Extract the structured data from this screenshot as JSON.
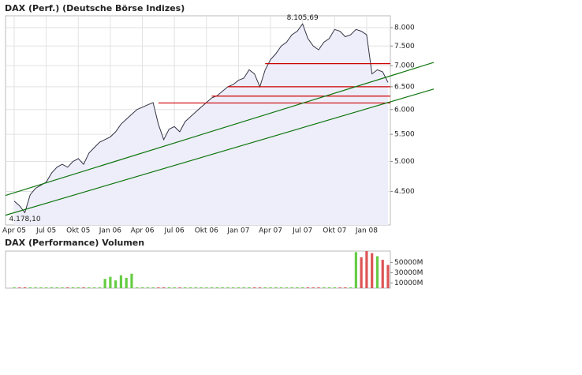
{
  "chart_data": [
    {
      "type": "line",
      "title": "DAX (Perf.) (Deutsche Börse Indizes)",
      "categories": [
        "Apr 05",
        null,
        null,
        null,
        null,
        null,
        "Jul 05",
        null,
        null,
        null,
        null,
        null,
        "Okt 05",
        null,
        null,
        null,
        null,
        null,
        "Jan 06",
        null,
        null,
        null,
        null,
        null,
        "Apr 06",
        null,
        null,
        null,
        null,
        null,
        "Jul 06",
        null,
        null,
        null,
        null,
        null,
        "Okt 06",
        null,
        null,
        null,
        null,
        null,
        "Jan 07",
        null,
        null,
        null,
        null,
        null,
        "Apr 07",
        null,
        null,
        null,
        null,
        null,
        "Jul 07",
        null,
        null,
        null,
        null,
        null,
        "Okt 07",
        null,
        null,
        null,
        null,
        null,
        "Jan 08",
        null,
        null,
        null,
        null
      ],
      "values": [
        4350,
        4280,
        4178.1,
        4450,
        4550,
        4600,
        4650,
        4800,
        4900,
        4950,
        4900,
        5000,
        5050,
        4950,
        5150,
        5250,
        5350,
        5400,
        5450,
        5550,
        5700,
        5800,
        5900,
        6000,
        6050,
        6100,
        6150,
        5700,
        5400,
        5600,
        5650,
        5550,
        5750,
        5850,
        5950,
        6050,
        6150,
        6250,
        6300,
        6400,
        6500,
        6550,
        6650,
        6700,
        6900,
        6800,
        6500,
        6900,
        7150,
        7300,
        7500,
        7600,
        7800,
        7900,
        8105.69,
        7700,
        7500,
        7400,
        7600,
        7700,
        7950,
        7900,
        7750,
        7800,
        7950,
        7900,
        7800,
        6800,
        6900,
        6850,
        6600
      ],
      "value_labels": [
        null,
        null,
        "4.178,10",
        null,
        null,
        null,
        null,
        null,
        null,
        null,
        null,
        null,
        null,
        null,
        null,
        null,
        null,
        null,
        null,
        null,
        null,
        null,
        null,
        null,
        null,
        null,
        null,
        null,
        null,
        null,
        null,
        null,
        null,
        null,
        null,
        null,
        null,
        null,
        null,
        null,
        null,
        null,
        null,
        null,
        null,
        null,
        null,
        null,
        null,
        null,
        null,
        null,
        null,
        null,
        "8.105,69",
        null,
        null,
        null,
        null,
        null,
        null,
        null,
        null,
        null,
        null,
        null,
        null,
        null,
        null,
        null,
        null
      ],
      "color": "#333344",
      "area_color": "#eeeefa",
      "yscale": "log",
      "ylim": [
        4000,
        8340
      ],
      "yticks": [
        {
          "value": 4500,
          "label": "4.500"
        },
        {
          "value": 5000,
          "label": "5.000"
        },
        {
          "value": 5500,
          "label": "5.500"
        },
        {
          "value": 6000,
          "label": "6.000"
        },
        {
          "value": 6500,
          "label": "6.500"
        },
        {
          "value": 7000,
          "label": "7.000"
        },
        {
          "value": 7500,
          "label": "7.500"
        },
        {
          "value": 8000,
          "label": "8.000"
        }
      ],
      "grid": true,
      "hlines": [
        {
          "value": 7050,
          "from": 47
        },
        {
          "value": 6500,
          "from": 40
        },
        {
          "value": 6290,
          "from": 37
        },
        {
          "value": 6140,
          "from": 27
        }
      ],
      "hline_color": "#cc0000",
      "trendlines": [
        {
          "from": [
            0,
            4480
          ],
          "to": [
            70,
            6735
          ]
        },
        {
          "from": [
            0,
            4177
          ],
          "to": [
            70,
            6150
          ]
        }
      ],
      "trend_color": "#117711"
    },
    {
      "type": "bar",
      "title": "DAX (Performance) Volumen",
      "values": [
        1500,
        1400,
        1600,
        1500,
        1500,
        1400,
        1500,
        1600,
        1500,
        1400,
        1500,
        1500,
        1600,
        1500,
        1400,
        1500,
        1500,
        18000,
        22000,
        15000,
        25000,
        20000,
        28000,
        1500,
        1600,
        1500,
        1400,
        1500,
        1500,
        1600,
        1500,
        1400,
        1500,
        1500,
        1600,
        1500,
        1400,
        1500,
        1500,
        1600,
        1500,
        1400,
        1500,
        1500,
        1600,
        1500,
        1400,
        1500,
        1500,
        1600,
        1500,
        1400,
        1500,
        1500,
        1600,
        1500,
        1400,
        1500,
        1500,
        1600,
        1500,
        1400,
        1500,
        1500,
        70000,
        60000,
        72000,
        68000,
        62000,
        55000,
        45000
      ],
      "up_color": "#66cc44",
      "down_color": "#dd5555",
      "ylim": [
        0,
        72000
      ],
      "yticks": [
        {
          "value": 10000,
          "label": "10000M"
        },
        {
          "value": 30000,
          "label": "30000M"
        },
        {
          "value": 50000,
          "label": "50000M"
        }
      ]
    }
  ]
}
